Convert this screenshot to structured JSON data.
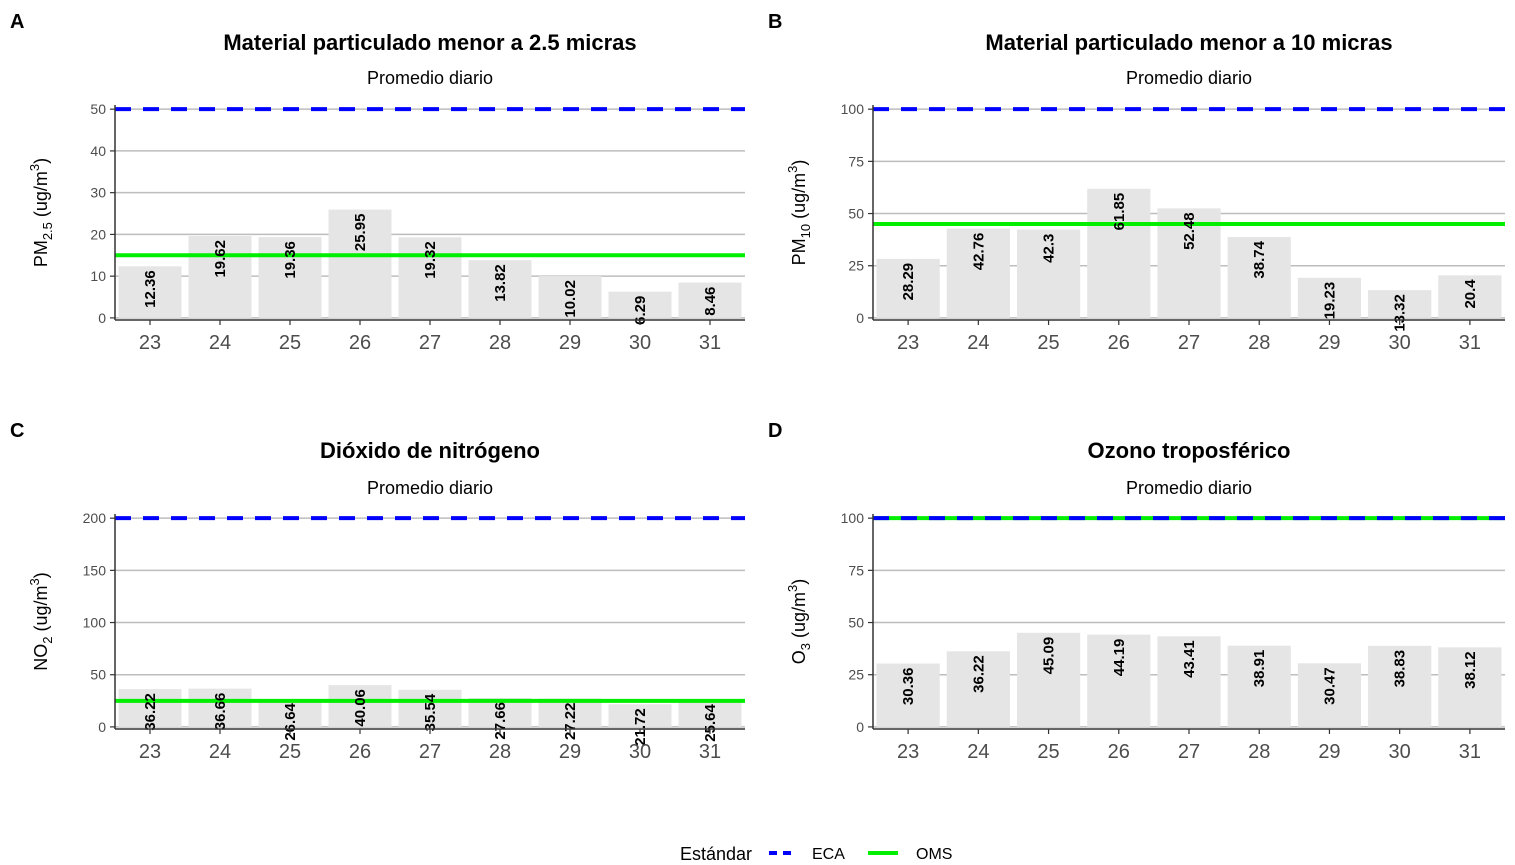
{
  "legend": {
    "title": "Estándar",
    "items": [
      {
        "label": "ECA",
        "color": "#0000ff",
        "style": "dashed"
      },
      {
        "label": "OMS",
        "color": "#00ee00",
        "style": "solid"
      }
    ]
  },
  "chart_data": [
    {
      "panel": "A",
      "type": "bar",
      "title": "Material particulado menor a 2.5 micras",
      "subtitle": "Promedio diario",
      "ylabel": {
        "base": "PM",
        "sub": "2.5",
        "unit": " (ug/m",
        "unit_sup": "3",
        "close": ")"
      },
      "categories": [
        "23",
        "24",
        "25",
        "26",
        "27",
        "28",
        "29",
        "30",
        "31"
      ],
      "values": [
        12.36,
        19.62,
        19.36,
        25.95,
        19.32,
        13.82,
        10.02,
        6.29,
        8.46
      ],
      "value_labels": [
        "12.36",
        "19.62",
        "19.36",
        "25.95",
        "19.32",
        "13.82",
        "10.02",
        "6.29",
        "8.46"
      ],
      "yticks": [
        0,
        10,
        20,
        30,
        40,
        50
      ],
      "ylim": [
        -0.5,
        51
      ],
      "standards": {
        "ECA": 50,
        "OMS": 15
      },
      "bar_color": "#e5e5e5"
    },
    {
      "panel": "B",
      "type": "bar",
      "title": "Material particulado menor a 10 micras",
      "subtitle": "Promedio diario",
      "ylabel": {
        "base": "PM",
        "sub": "10",
        "unit": " (ug/m",
        "unit_sup": "3",
        "close": ")"
      },
      "categories": [
        "23",
        "24",
        "25",
        "26",
        "27",
        "28",
        "29",
        "30",
        "31"
      ],
      "values": [
        28.29,
        42.76,
        42.3,
        61.85,
        52.48,
        38.74,
        19.23,
        13.32,
        20.4
      ],
      "value_labels": [
        "28.29",
        "42.76",
        "42.3",
        "61.85",
        "52.48",
        "38.74",
        "19.23",
        "13.32",
        "20.4"
      ],
      "yticks": [
        0,
        25,
        50,
        75,
        100
      ],
      "ylim": [
        -1,
        102
      ],
      "standards": {
        "ECA": 100,
        "OMS": 45
      },
      "bar_color": "#e5e5e5"
    },
    {
      "panel": "C",
      "type": "bar",
      "title": "Dióxido de nitrógeno",
      "subtitle": "Promedio diario",
      "ylabel": {
        "base": "NO",
        "sub": "2",
        "unit": " (ug/m",
        "unit_sup": "3",
        "close": ")"
      },
      "categories": [
        "23",
        "24",
        "25",
        "26",
        "27",
        "28",
        "29",
        "30",
        "31"
      ],
      "values": [
        36.22,
        36.66,
        26.64,
        40.06,
        35.54,
        27.66,
        27.22,
        21.72,
        25.64
      ],
      "value_labels": [
        "36.22",
        "36.66",
        "26.64",
        "40.06",
        "35.54",
        "27.66",
        "27.22",
        "21.72",
        "25.64"
      ],
      "yticks": [
        0,
        50,
        100,
        150,
        200
      ],
      "ylim": [
        -2,
        204
      ],
      "standards": {
        "ECA": 200,
        "OMS": 25
      },
      "bar_color": "#e5e5e5"
    },
    {
      "panel": "D",
      "type": "bar",
      "title": "Ozono troposférico",
      "subtitle": "Promedio diario",
      "ylabel": {
        "base": "O",
        "sub": "3",
        "unit": " (ug/m",
        "unit_sup": "3",
        "close": ")"
      },
      "categories": [
        "23",
        "24",
        "25",
        "26",
        "27",
        "28",
        "29",
        "30",
        "31"
      ],
      "values": [
        30.36,
        36.22,
        45.09,
        44.19,
        43.41,
        38.91,
        30.47,
        38.83,
        38.12
      ],
      "value_labels": [
        "30.36",
        "36.22",
        "45.09",
        "44.19",
        "43.41",
        "38.91",
        "30.47",
        "38.83",
        "38.12"
      ],
      "yticks": [
        0,
        25,
        50,
        75,
        100
      ],
      "ylim": [
        -1,
        102
      ],
      "standards": {
        "ECA": 100,
        "OMS": 100
      },
      "bar_color": "#e5e5e5"
    }
  ]
}
